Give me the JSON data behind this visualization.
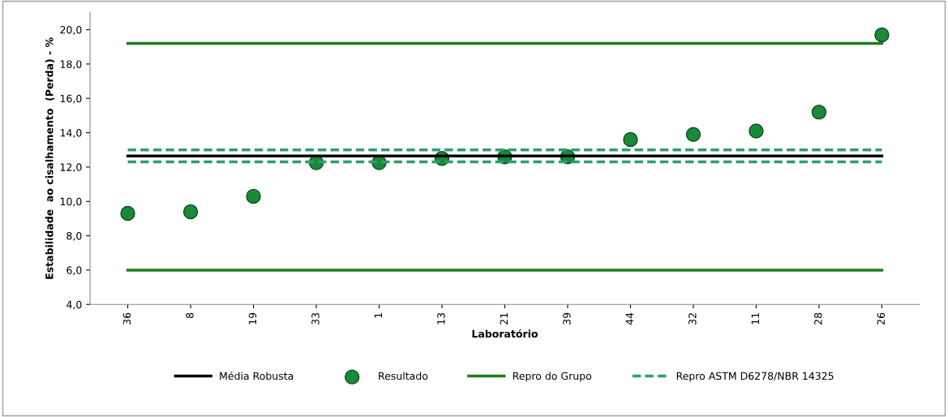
{
  "chart_data": {
    "type": "scatter",
    "xlabel": "Laboratório",
    "ylabel": "Estabilidade  ao cisalhamento  (Perda) - %",
    "categories": [
      "36",
      "8",
      "19",
      "33",
      "1",
      "13",
      "21",
      "39",
      "44",
      "32",
      "11",
      "28",
      "26"
    ],
    "series": [
      {
        "name": "Média Robusta",
        "type": "line",
        "color": "#000000",
        "line_style": "solid",
        "marker": "none",
        "values": [
          12.65,
          12.65,
          12.65,
          12.65,
          12.65,
          12.65,
          12.65,
          12.65,
          12.65,
          12.65,
          12.65,
          12.65,
          12.65
        ]
      },
      {
        "name": "Resultado",
        "color": "#1a8a3a",
        "marker": "circle",
        "values": [
          9.3,
          9.4,
          10.3,
          12.25,
          12.25,
          12.5,
          12.6,
          12.6,
          13.6,
          13.9,
          14.1,
          15.2,
          19.7
        ]
      },
      {
        "name": "Repro do Grupo",
        "type": "line",
        "color": "#1e7b1e",
        "line_style": "solid",
        "marker": "none",
        "values": [
          19.2,
          19.2,
          19.2,
          19.2,
          19.2,
          19.2,
          19.2,
          19.2,
          19.2,
          19.2,
          19.2,
          19.2,
          19.2
        ]
      },
      {
        "type": "line",
        "color": "#1e7b1e",
        "line_style": "solid",
        "marker": "none",
        "values": [
          6.0,
          6.0,
          6.0,
          6.0,
          6.0,
          6.0,
          6.0,
          6.0,
          6.0,
          6.0,
          6.0,
          6.0,
          6.0
        ]
      },
      {
        "name": "Repro ASTM D6278/NBR 14325",
        "type": "line",
        "color": "#2e9e6e",
        "line_style": "dashed",
        "marker": "none",
        "values": [
          13.0,
          13.0,
          13.0,
          13.0,
          13.0,
          13.0,
          13.0,
          13.0,
          13.0,
          13.0,
          13.0,
          13.0,
          13.0
        ]
      },
      {
        "type": "line",
        "color": "#2e9e6e",
        "line_style": "dashed",
        "marker": "none",
        "values": [
          12.3,
          12.3,
          12.3,
          12.3,
          12.3,
          12.3,
          12.3,
          12.3,
          12.3,
          12.3,
          12.3,
          12.3,
          12.3
        ]
      }
    ],
    "ylim": [
      4,
      21
    ],
    "yticks": [
      {
        "value": 4,
        "label": "4,0"
      },
      {
        "value": 6,
        "label": "6,0"
      },
      {
        "value": 8,
        "label": "8,0"
      },
      {
        "value": 10,
        "label": "10,0"
      },
      {
        "value": 12,
        "label": "12,0"
      },
      {
        "value": 14,
        "label": "14,0"
      },
      {
        "value": 16,
        "label": "16,0"
      },
      {
        "value": 18,
        "label": "18,0"
      },
      {
        "value": 20,
        "label": "20,0"
      }
    ],
    "grid": false,
    "legend": "bottom"
  }
}
